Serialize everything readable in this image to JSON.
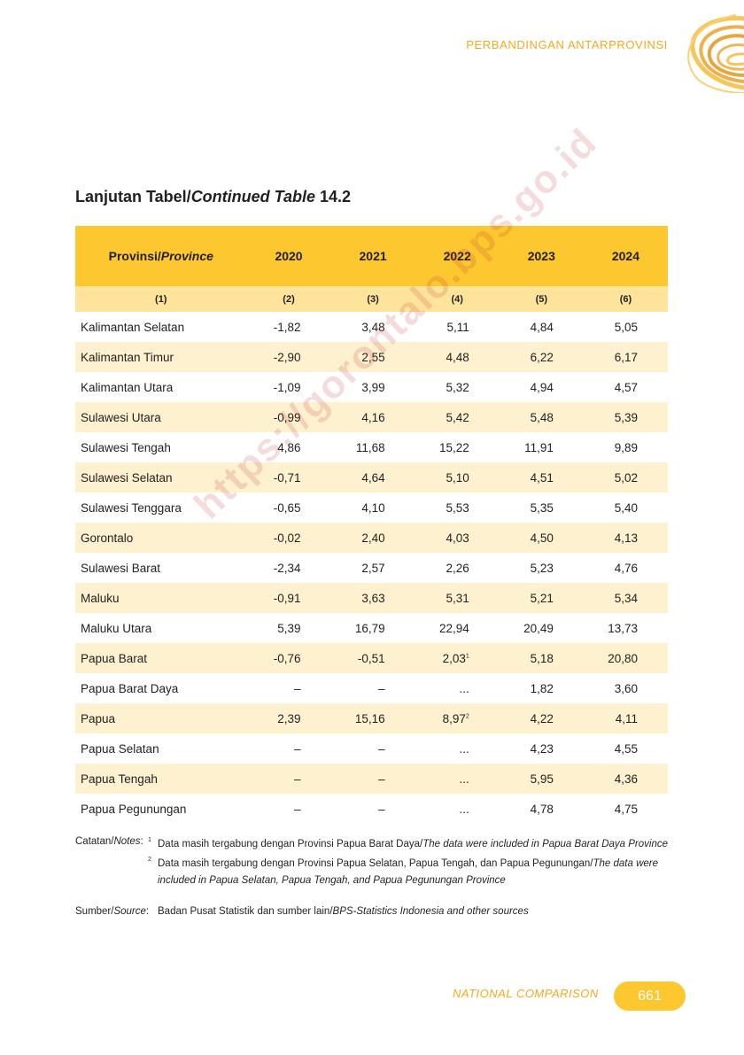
{
  "header": {
    "section_label": "PERBANDINGAN ANTARPROVINSI"
  },
  "title": {
    "prefix": "Lanjutan Tabel/",
    "italic": "Continued Table",
    "number": "14.2"
  },
  "table": {
    "header_province_id": "Provinsi/",
    "header_province_en": "Province",
    "years": [
      "2020",
      "2021",
      "2022",
      "2023",
      "2024"
    ],
    "col_numbers": [
      "(1)",
      "(2)",
      "(3)",
      "(4)",
      "(5)",
      "(6)"
    ],
    "rows": [
      {
        "province": "Kalimantan Selatan",
        "values": [
          "-1,82",
          "3,48",
          "5,11",
          "4,84",
          "5,05"
        ]
      },
      {
        "province": "Kalimantan Timur",
        "values": [
          "-2,90",
          "2,55",
          "4,48",
          "6,22",
          "6,17"
        ]
      },
      {
        "province": "Kalimantan Utara",
        "values": [
          "-1,09",
          "3,99",
          "5,32",
          "4,94",
          "4,57"
        ]
      },
      {
        "province": "Sulawesi Utara",
        "values": [
          "-0,99",
          "4,16",
          "5,42",
          "5,48",
          "5,39"
        ]
      },
      {
        "province": "Sulawesi Tengah",
        "values": [
          "4,86",
          "11,68",
          "15,22",
          "11,91",
          "9,89"
        ]
      },
      {
        "province": "Sulawesi Selatan",
        "values": [
          "-0,71",
          "4,64",
          "5,10",
          "4,51",
          "5,02"
        ]
      },
      {
        "province": "Sulawesi Tenggara",
        "values": [
          "-0,65",
          "4,10",
          "5,53",
          "5,35",
          "5,40"
        ]
      },
      {
        "province": "Gorontalo",
        "values": [
          "-0,02",
          "2,40",
          "4,03",
          "4,50",
          "4,13"
        ]
      },
      {
        "province": "Sulawesi Barat",
        "values": [
          "-2,34",
          "2,57",
          "2,26",
          "5,23",
          "4,76"
        ]
      },
      {
        "province": "Maluku",
        "values": [
          "-0,91",
          "3,63",
          "5,31",
          "5,21",
          "5,34"
        ]
      },
      {
        "province": "Maluku Utara",
        "values": [
          "5,39",
          "16,79",
          "22,94",
          "20,49",
          "13,73"
        ]
      },
      {
        "province": "Papua Barat",
        "values": [
          "-0,76",
          "-0,51",
          "2,03",
          "5,18",
          "20,80"
        ],
        "sup_2022": "1"
      },
      {
        "province": "Papua Barat Daya",
        "values": [
          "–",
          "–",
          "...",
          "1,82",
          "3,60"
        ]
      },
      {
        "province": "Papua",
        "values": [
          "2,39",
          "15,16",
          "8,97",
          "4,22",
          "4,11"
        ],
        "sup_2022": "2"
      },
      {
        "province": "Papua Selatan",
        "values": [
          "–",
          "–",
          "...",
          "4,23",
          "4,55"
        ]
      },
      {
        "province": "Papua Tengah",
        "values": [
          "–",
          "–",
          "...",
          "5,95",
          "4,36"
        ]
      },
      {
        "province": "Papua Pegunungan",
        "values": [
          "–",
          "–",
          "...",
          "4,78",
          "4,75"
        ]
      }
    ]
  },
  "watermark": "https://gorontalo.bps.go.id",
  "notes": {
    "label_id": "Catatan/",
    "label_en": "Notes",
    "items": [
      {
        "marker": "1",
        "text_id": "Data masih tergabung dengan Provinsi Papua Barat Daya/",
        "text_en": "The data were included in Papua Barat Daya Province"
      },
      {
        "marker": "2",
        "text_id": "Data masih tergabung dengan Provinsi Papua Selatan, Papua Tengah, dan Papua Pegunungan/",
        "text_en": "The data were included in Papua Selatan, Papua Tengah, and Papua Pegunungan Province"
      }
    ]
  },
  "source": {
    "label_id": "Sumber/",
    "label_en": "Source",
    "text_id": "Badan Pusat Statistik dan sumber lain/",
    "text_en": "BPS-Statistics Indonesia and other sources"
  },
  "footer": {
    "section_label": "NATIONAL COMPARISON",
    "page_number": "661"
  },
  "colors": {
    "accent": "#fcc72f",
    "accent_light": "#fde49a",
    "row_stripe": "#fdf1cf",
    "orange_text": "#f5a81c"
  }
}
